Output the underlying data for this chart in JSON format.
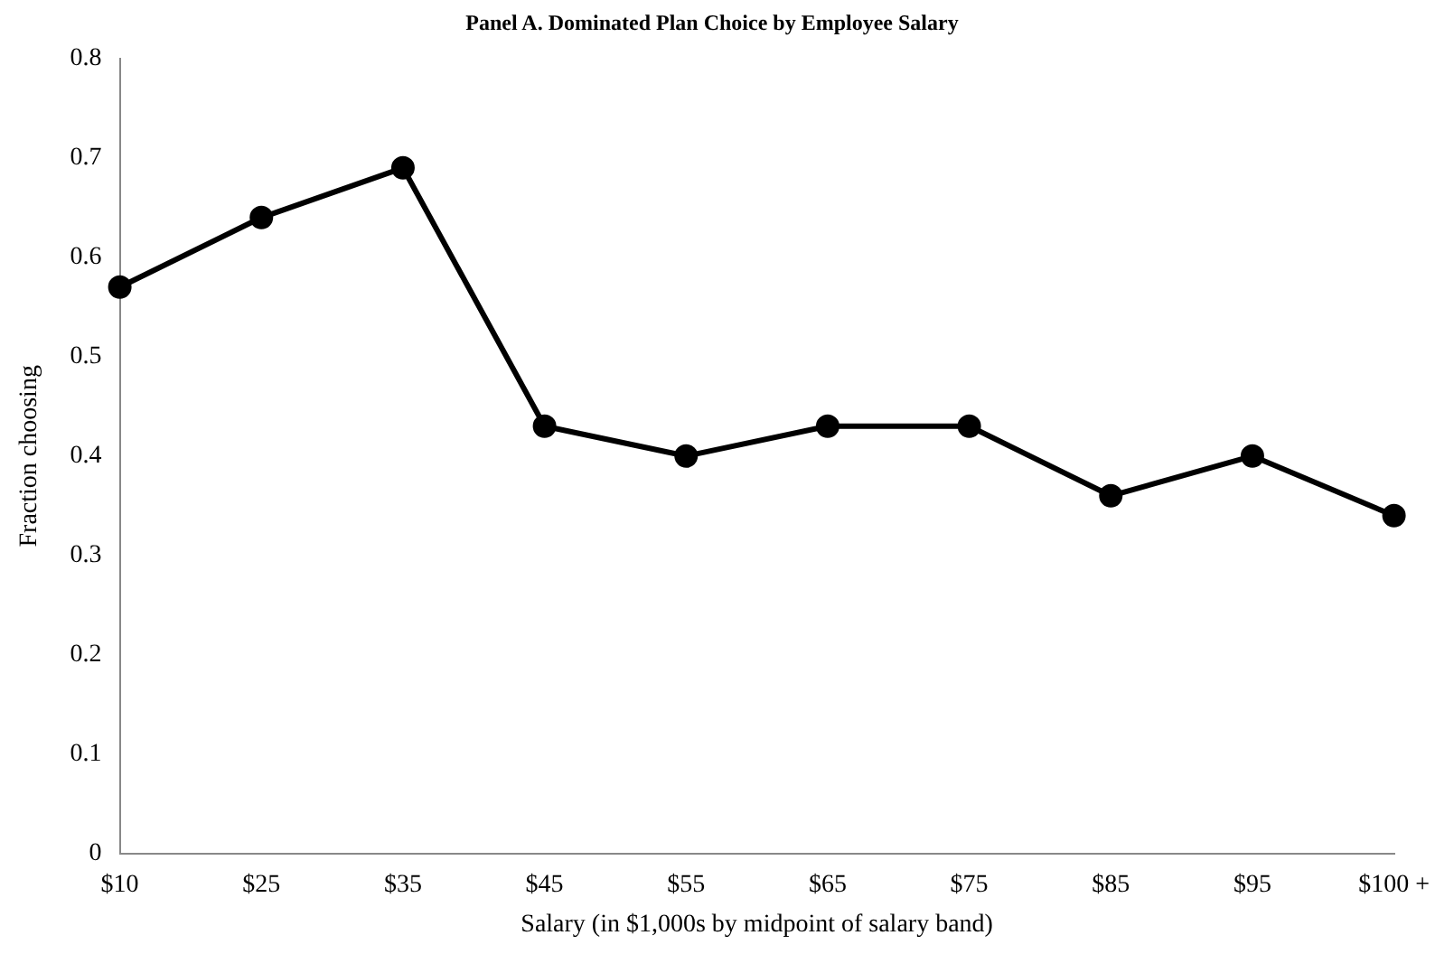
{
  "chart_data": {
    "type": "line",
    "title": "Panel A. Dominated Plan Choice by Employee Salary",
    "xlabel": "Salary (in $1,000s by midpoint of salary band)",
    "ylabel": "Fraction choosing",
    "categories": [
      "$10",
      "$25",
      "$35",
      "$45",
      "$55",
      "$65",
      "$75",
      "$85",
      "$95",
      "$100 +"
    ],
    "series": [
      {
        "color": "#000000",
        "values": [
          0.57,
          0.64,
          0.69,
          0.43,
          0.4,
          0.43,
          0.43,
          0.36,
          0.4,
          0.34
        ]
      }
    ],
    "ylim": [
      0,
      0.8
    ],
    "yticks": [
      0,
      {
        "value": 0.1,
        "label": "0.1"
      },
      {
        "value": 0.2,
        "label": "0.2"
      },
      {
        "value": 0.3,
        "label": "0.3"
      },
      {
        "value": 0.4,
        "label": "0.4"
      },
      {
        "value": 0.5,
        "label": "0.5"
      },
      {
        "value": 0.6,
        "label": "0.6"
      },
      {
        "value": 0.7,
        "label": "0.7"
      },
      {
        "value": 0.8,
        "label": "0.8"
      }
    ],
    "grid": false,
    "legend": false,
    "marker": "circle",
    "line_style": "solid"
  }
}
